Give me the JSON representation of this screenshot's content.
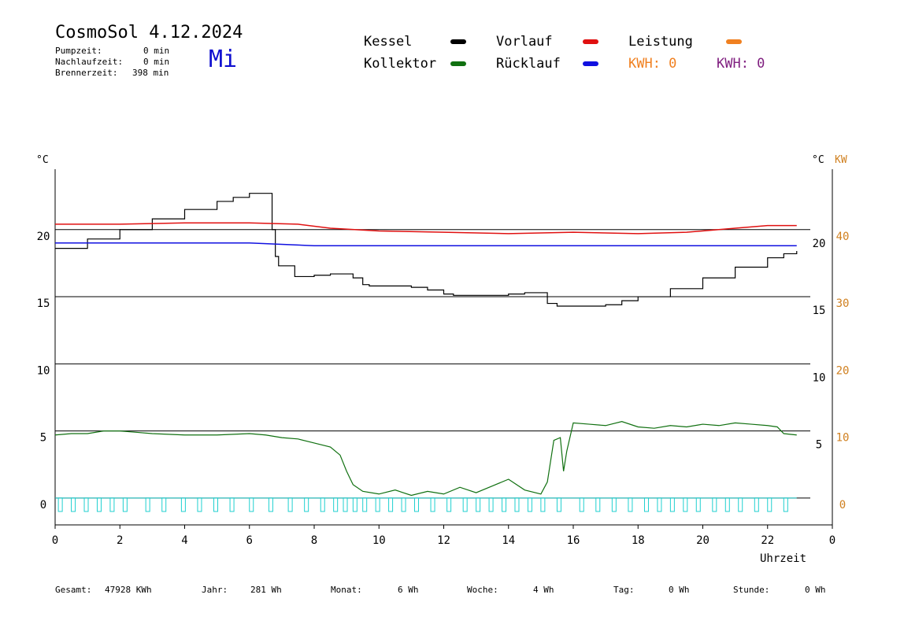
{
  "header": {
    "title": "CosmoSol 4.12.2024",
    "day": "Mi",
    "stats": [
      {
        "label": "Pumpzeit:",
        "value": "0 min"
      },
      {
        "label": "Nachlaufzeit:",
        "value": "0 min"
      },
      {
        "label": "Brennerzeit:",
        "value": "398 min"
      }
    ]
  },
  "legend": {
    "kessel": {
      "label": "Kessel",
      "color": "#000000"
    },
    "vorlauf": {
      "label": "Vorlauf",
      "color": "#e01010"
    },
    "leistung": {
      "label": "Leistung",
      "color": "#f08020"
    },
    "kollektor": {
      "label": "Kollektor",
      "color": "#107010"
    },
    "ruecklauf": {
      "label": "Rücklauf",
      "color": "#1010e0"
    },
    "kwh1": {
      "label": "KWH: 0",
      "color": "#f08020"
    },
    "kwh2": {
      "label": "KWH: 0",
      "color": "#802080"
    }
  },
  "footer": [
    {
      "label": "Gesamt:",
      "value": "47928 KWh"
    },
    {
      "label": "Jahr:",
      "value": "281 Wh"
    },
    {
      "label": "Monat:",
      "value": "6 Wh"
    },
    {
      "label": "Woche:",
      "value": "4 Wh"
    },
    {
      "label": "Tag:",
      "value": "0 Wh"
    },
    {
      "label": "Stunde:",
      "value": "0 Wh"
    }
  ],
  "chart_data": {
    "type": "line",
    "xlabel": "Uhrzeit",
    "ylabel_left": "°C",
    "ylabel_right": "°C",
    "ylabel_right2": "KW",
    "xlim": [
      0,
      24
    ],
    "ylim": [
      -2,
      24.5
    ],
    "x_ticks": [
      "0",
      "2",
      "4",
      "6",
      "8",
      "10",
      "12",
      "14",
      "16",
      "18",
      "20",
      "22",
      "0"
    ],
    "y_ticks_left": [
      0,
      5,
      10,
      15,
      20
    ],
    "y_ticks_right_inner": [
      5,
      10,
      15,
      20
    ],
    "y_ticks_right_kw": [
      0,
      10,
      20,
      30,
      40
    ],
    "hlines": [
      0,
      5,
      10,
      15,
      20
    ],
    "series": [
      {
        "name": "Kessel",
        "color": "#000000",
        "x": [
          0,
          1,
          2,
          3,
          4,
          5,
          5.5,
          6,
          6.5,
          6.55,
          6.7,
          6.8,
          6.9,
          7.0,
          7.2,
          7.4,
          7.5,
          8.0,
          8.5,
          9.0,
          9.2,
          9.5,
          9.7,
          10.0,
          10.5,
          11.0,
          11.5,
          12.0,
          12.3,
          13.0,
          14.0,
          14.5,
          15.0,
          15.2,
          15.5,
          16.0,
          16.5,
          17.0,
          17.5,
          18.0,
          19.0,
          20.0,
          21.0,
          22.0,
          22.5,
          22.9
        ],
        "y": [
          18.6,
          19.3,
          20.0,
          20.8,
          21.5,
          22.1,
          22.4,
          22.7,
          22.7,
          22.7,
          20.0,
          18.0,
          17.3,
          17.3,
          17.3,
          16.5,
          16.5,
          16.6,
          16.7,
          16.7,
          16.4,
          15.9,
          15.8,
          15.8,
          15.8,
          15.7,
          15.5,
          15.2,
          15.1,
          15.1,
          15.2,
          15.3,
          15.3,
          14.5,
          14.3,
          14.3,
          14.3,
          14.4,
          14.7,
          15.0,
          15.6,
          16.4,
          17.2,
          17.9,
          18.2,
          18.4
        ]
      },
      {
        "name": "Vorlauf",
        "color": "#e01010",
        "x": [
          0,
          2,
          4,
          6,
          7.5,
          8.5,
          10,
          12,
          14,
          16,
          18,
          19.5,
          21,
          22,
          22.9
        ],
        "y": [
          20.4,
          20.4,
          20.5,
          20.5,
          20.4,
          20.1,
          19.9,
          19.8,
          19.7,
          19.8,
          19.7,
          19.8,
          20.1,
          20.3,
          20.3
        ]
      },
      {
        "name": "Rücklauf",
        "color": "#1010e0",
        "x": [
          0,
          2,
          4,
          6,
          7,
          8,
          10,
          12,
          14,
          16,
          18,
          20,
          22,
          22.9
        ],
        "y": [
          19.0,
          19.0,
          19.0,
          19.0,
          18.9,
          18.8,
          18.8,
          18.8,
          18.8,
          18.8,
          18.8,
          18.8,
          18.8,
          18.8
        ]
      },
      {
        "name": "Kollektor",
        "color": "#107010",
        "x": [
          0,
          0.5,
          1,
          1.5,
          2,
          2.5,
          3,
          4,
          5,
          6,
          6.5,
          7,
          7.5,
          8,
          8.5,
          8.8,
          9.0,
          9.2,
          9.5,
          10,
          10.5,
          11,
          11.5,
          12,
          12.5,
          13,
          13.5,
          14,
          14.5,
          15,
          15.2,
          15.4,
          15.6,
          15.7,
          15.8,
          16.0,
          16.5,
          17,
          17.5,
          18,
          18.5,
          19,
          19.5,
          20,
          20.5,
          21,
          21.5,
          22,
          22.3,
          22.5,
          22.9
        ],
        "y": [
          4.7,
          4.8,
          4.8,
          5.0,
          5.0,
          4.9,
          4.8,
          4.7,
          4.7,
          4.8,
          4.7,
          4.5,
          4.4,
          4.1,
          3.8,
          3.2,
          2.0,
          1.0,
          0.5,
          0.3,
          0.6,
          0.2,
          0.5,
          0.3,
          0.8,
          0.4,
          0.9,
          1.4,
          0.6,
          0.3,
          1.2,
          4.3,
          4.5,
          2.0,
          3.5,
          5.6,
          5.5,
          5.4,
          5.7,
          5.3,
          5.2,
          5.4,
          5.3,
          5.5,
          5.4,
          5.6,
          5.5,
          5.4,
          5.3,
          4.8,
          4.7
        ]
      },
      {
        "name": "Pumpe",
        "color": "#20d0d0",
        "x": [
          0.1,
          0.5,
          0.9,
          1.3,
          1.7,
          2.1,
          2.8,
          3.3,
          3.9,
          4.4,
          4.9,
          5.4,
          6.0,
          6.6,
          7.2,
          7.7,
          8.2,
          8.6,
          8.9,
          9.2,
          9.5,
          9.9,
          10.3,
          10.7,
          11.1,
          11.6,
          12.1,
          12.6,
          13.0,
          13.4,
          13.8,
          14.2,
          14.6,
          15.0,
          15.5,
          16.2,
          16.7,
          17.2,
          17.7,
          18.2,
          18.6,
          19.0,
          19.4,
          19.8,
          20.3,
          20.7,
          21.1,
          21.6,
          22.0,
          22.5
        ],
        "y": [
          1,
          1,
          1,
          1,
          1,
          1,
          1,
          1,
          1,
          1,
          1,
          1,
          1,
          1,
          1,
          1,
          1,
          1,
          1,
          1,
          1,
          1,
          1,
          1,
          1,
          1,
          1,
          1,
          1,
          1,
          1,
          1,
          1,
          1,
          1,
          1,
          1,
          1,
          1,
          1,
          1,
          1,
          1,
          1,
          1,
          1,
          1,
          1,
          1,
          1
        ]
      }
    ]
  }
}
